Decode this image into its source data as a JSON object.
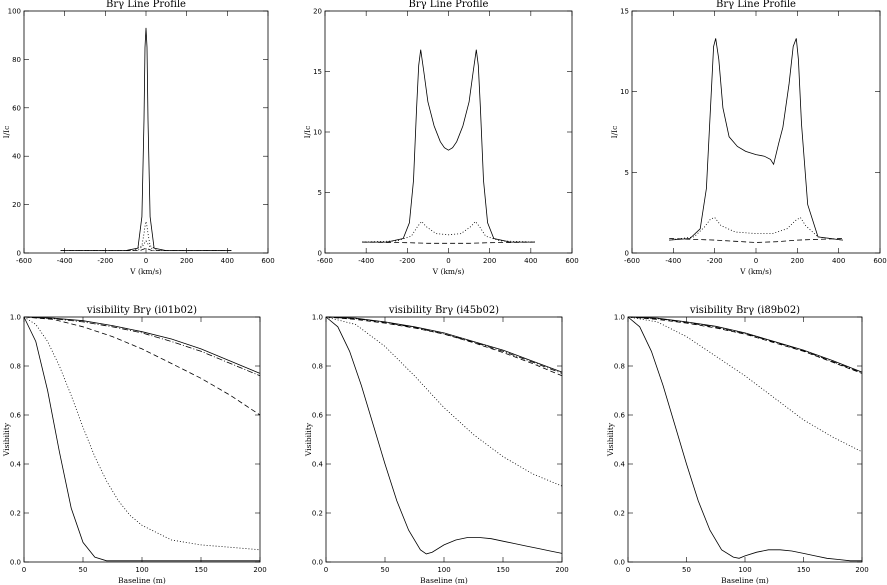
{
  "chart_data": [
    {
      "type": "line",
      "title": "Brγ Line Profile",
      "xlabel": "V (km/s)",
      "ylabel": "I/Ic",
      "xlim": [
        -600,
        600
      ],
      "ylim": [
        0,
        100
      ],
      "xticks": [
        -600,
        -400,
        -200,
        0,
        200,
        400,
        600
      ],
      "yticks": [
        0,
        20,
        40,
        60,
        80,
        100
      ],
      "series": [
        {
          "style": "solid",
          "x": [
            -420,
            -100,
            -40,
            -20,
            -10,
            -5,
            0,
            5,
            10,
            20,
            40,
            100,
            420
          ],
          "y": [
            1,
            1,
            2,
            15,
            55,
            85,
            93,
            85,
            55,
            15,
            2,
            1,
            1
          ]
        },
        {
          "style": "dotted",
          "x": [
            -420,
            -60,
            -20,
            -10,
            -5,
            0,
            5,
            10,
            20,
            60,
            420
          ],
          "y": [
            1,
            1,
            3,
            8,
            11,
            13,
            11,
            8,
            3,
            1,
            1
          ]
        },
        {
          "style": "dotted",
          "x": [
            -420,
            -40,
            -15,
            0,
            15,
            40,
            420
          ],
          "y": [
            1,
            1,
            3,
            5,
            3,
            1,
            1
          ]
        },
        {
          "style": "dashed",
          "x": [
            -420,
            -30,
            0,
            30,
            420
          ],
          "y": [
            1,
            1,
            2,
            1,
            1
          ]
        }
      ]
    },
    {
      "type": "line",
      "title": "Brγ Line Profile",
      "xlabel": "V (km/s)",
      "ylabel": "I/Ic",
      "xlim": [
        -600,
        600
      ],
      "ylim": [
        0,
        20
      ],
      "xticks": [
        -600,
        -400,
        -200,
        0,
        200,
        400,
        600
      ],
      "yticks": [
        0,
        5,
        10,
        15,
        20
      ],
      "series": [
        {
          "style": "solid",
          "x": [
            -420,
            -300,
            -220,
            -190,
            -170,
            -155,
            -145,
            -135,
            -120,
            -100,
            -70,
            -40,
            -20,
            0,
            20,
            40,
            70,
            100,
            120,
            135,
            145,
            155,
            170,
            190,
            220,
            300,
            420
          ],
          "y": [
            0.9,
            0.9,
            1.2,
            2.5,
            6,
            12,
            15.5,
            16.8,
            15,
            12.5,
            10.5,
            9.2,
            8.7,
            8.5,
            8.7,
            9.2,
            10.5,
            12.5,
            15,
            16.8,
            15.5,
            12,
            6,
            2.5,
            1.2,
            0.9,
            0.9
          ]
        },
        {
          "style": "dotted",
          "x": [
            -420,
            -250,
            -180,
            -150,
            -130,
            -110,
            -60,
            0,
            60,
            110,
            130,
            150,
            180,
            250,
            420
          ],
          "y": [
            0.9,
            1.0,
            1.4,
            2.2,
            2.6,
            2.2,
            1.6,
            1.5,
            1.6,
            2.2,
            2.6,
            2.2,
            1.4,
            1.0,
            0.9
          ]
        },
        {
          "style": "dashed",
          "x": [
            -420,
            -200,
            -100,
            0,
            100,
            200,
            420
          ],
          "y": [
            0.9,
            0.85,
            0.8,
            0.8,
            0.8,
            0.85,
            0.9
          ]
        }
      ]
    },
    {
      "type": "line",
      "title": "Brγ Line Profile",
      "xlabel": "V (km/s)",
      "ylabel": "I/Ic",
      "xlim": [
        -600,
        600
      ],
      "ylim": [
        0,
        15
      ],
      "xticks": [
        -600,
        -400,
        -200,
        0,
        200,
        400,
        600
      ],
      "yticks": [
        0,
        5,
        10,
        15
      ],
      "series": [
        {
          "style": "solid",
          "x": [
            -420,
            -320,
            -270,
            -240,
            -220,
            -205,
            -195,
            -180,
            -160,
            -130,
            -90,
            -50,
            0,
            40,
            70,
            85,
            95,
            110,
            130,
            160,
            180,
            195,
            205,
            220,
            250,
            300,
            420
          ],
          "y": [
            0.8,
            0.9,
            1.5,
            4,
            9,
            12.8,
            13.3,
            12,
            9,
            7.2,
            6.6,
            6.3,
            6.1,
            6.0,
            5.8,
            5.5,
            6,
            6.8,
            7.8,
            10.5,
            12.8,
            13.3,
            12,
            8,
            3,
            1,
            0.8
          ]
        },
        {
          "style": "dotted",
          "x": [
            -420,
            -300,
            -250,
            -220,
            -200,
            -170,
            -100,
            0,
            80,
            150,
            190,
            215,
            240,
            300,
            420
          ],
          "y": [
            0.8,
            1.0,
            1.6,
            2.1,
            2.2,
            1.7,
            1.3,
            1.2,
            1.2,
            1.5,
            2.0,
            2.2,
            1.7,
            1.0,
            0.8
          ]
        },
        {
          "style": "dashed",
          "x": [
            -420,
            -200,
            0,
            100,
            200,
            420
          ],
          "y": [
            0.9,
            0.8,
            0.65,
            0.7,
            0.8,
            0.9
          ]
        }
      ]
    },
    {
      "type": "line",
      "title": "visibility Brγ (i01b02)",
      "xlabel": "Baseline (m)",
      "ylabel": "Visibility",
      "xlim": [
        0,
        200
      ],
      "ylim": [
        0,
        1.0
      ],
      "xticks": [
        0,
        50,
        100,
        150,
        200
      ],
      "yticks": [
        0,
        0.2,
        0.4,
        0.6,
        0.8,
        1.0
      ],
      "series": [
        {
          "style": "solid",
          "x": [
            0,
            10,
            20,
            30,
            40,
            50,
            60,
            70,
            80,
            100,
            150,
            200
          ],
          "y": [
            1.0,
            0.9,
            0.7,
            0.45,
            0.22,
            0.08,
            0.02,
            0.005,
            0.005,
            0.005,
            0.005,
            0.005
          ]
        },
        {
          "style": "dotted",
          "x": [
            0,
            10,
            20,
            30,
            40,
            50,
            60,
            70,
            80,
            90,
            100,
            125,
            150,
            175,
            200
          ],
          "y": [
            1.0,
            0.97,
            0.9,
            0.8,
            0.68,
            0.55,
            0.43,
            0.33,
            0.25,
            0.19,
            0.15,
            0.09,
            0.07,
            0.06,
            0.05
          ]
        },
        {
          "style": "dashed",
          "x": [
            0,
            25,
            50,
            75,
            100,
            125,
            150,
            175,
            200
          ],
          "y": [
            1.0,
            0.99,
            0.96,
            0.92,
            0.87,
            0.81,
            0.75,
            0.68,
            0.6
          ]
        },
        {
          "style": "solid",
          "x": [
            0,
            25,
            50,
            75,
            100,
            125,
            150,
            175,
            200
          ],
          "y": [
            1.0,
            0.995,
            0.985,
            0.965,
            0.94,
            0.91,
            0.87,
            0.82,
            0.77
          ]
        },
        {
          "style": "dashdot",
          "x": [
            0,
            25,
            50,
            75,
            100,
            125,
            150,
            175,
            200
          ],
          "y": [
            1.0,
            0.993,
            0.98,
            0.96,
            0.935,
            0.9,
            0.86,
            0.81,
            0.76
          ]
        }
      ]
    },
    {
      "type": "line",
      "title": "visibility Brγ (i45b02)",
      "xlabel": "Baseline (m)",
      "ylabel": "Visibility",
      "xlim": [
        0,
        200
      ],
      "ylim": [
        0,
        1.0
      ],
      "xticks": [
        0,
        50,
        100,
        150,
        200
      ],
      "yticks": [
        0,
        0.2,
        0.4,
        0.6,
        0.8,
        1.0
      ],
      "series": [
        {
          "style": "solid",
          "x": [
            0,
            10,
            20,
            30,
            40,
            50,
            60,
            70,
            80,
            85,
            90,
            100,
            110,
            120,
            130,
            140,
            150,
            160,
            170,
            180,
            190,
            200
          ],
          "y": [
            1.0,
            0.96,
            0.86,
            0.72,
            0.56,
            0.4,
            0.25,
            0.13,
            0.05,
            0.033,
            0.04,
            0.07,
            0.09,
            0.1,
            0.1,
            0.095,
            0.085,
            0.075,
            0.065,
            0.055,
            0.045,
            0.035
          ]
        },
        {
          "style": "dotted",
          "x": [
            0,
            25,
            50,
            75,
            100,
            125,
            150,
            175,
            200
          ],
          "y": [
            1.0,
            0.97,
            0.88,
            0.76,
            0.63,
            0.52,
            0.43,
            0.36,
            0.31
          ]
        },
        {
          "style": "dashed",
          "x": [
            0,
            25,
            50,
            75,
            100,
            125,
            150,
            175,
            200
          ],
          "y": [
            1.0,
            0.99,
            0.975,
            0.955,
            0.93,
            0.895,
            0.855,
            0.81,
            0.76
          ]
        },
        {
          "style": "solid",
          "x": [
            0,
            25,
            50,
            75,
            100,
            125,
            150,
            175,
            200
          ],
          "y": [
            1.0,
            0.995,
            0.98,
            0.96,
            0.935,
            0.9,
            0.865,
            0.82,
            0.775
          ]
        },
        {
          "style": "dashdot",
          "x": [
            0,
            25,
            50,
            75,
            100,
            125,
            150,
            175,
            200
          ],
          "y": [
            1.0,
            0.993,
            0.978,
            0.957,
            0.931,
            0.897,
            0.86,
            0.816,
            0.77
          ]
        }
      ]
    },
    {
      "type": "line",
      "title": "visibility Brγ (i89b02)",
      "xlabel": "Baseline (m)",
      "ylabel": "Visibility",
      "xlim": [
        0,
        200
      ],
      "ylim": [
        0,
        1.0
      ],
      "xticks": [
        0,
        50,
        100,
        150,
        200
      ],
      "yticks": [
        0,
        0.2,
        0.4,
        0.6,
        0.8,
        1.0
      ],
      "series": [
        {
          "style": "solid",
          "x": [
            0,
            10,
            20,
            30,
            40,
            50,
            60,
            70,
            80,
            90,
            95,
            100,
            110,
            120,
            130,
            140,
            150,
            160,
            170,
            180,
            190,
            200
          ],
          "y": [
            1.0,
            0.96,
            0.86,
            0.72,
            0.56,
            0.4,
            0.25,
            0.13,
            0.05,
            0.02,
            0.015,
            0.025,
            0.04,
            0.05,
            0.05,
            0.045,
            0.035,
            0.025,
            0.015,
            0.01,
            0.005,
            0.005
          ]
        },
        {
          "style": "dotted",
          "x": [
            0,
            25,
            50,
            75,
            100,
            125,
            150,
            175,
            200
          ],
          "y": [
            1.0,
            0.98,
            0.92,
            0.84,
            0.76,
            0.67,
            0.58,
            0.51,
            0.45
          ]
        },
        {
          "style": "dashed",
          "x": [
            0,
            25,
            50,
            75,
            100,
            125,
            150,
            175,
            200
          ],
          "y": [
            1.0,
            0.99,
            0.975,
            0.955,
            0.93,
            0.895,
            0.86,
            0.815,
            0.77
          ]
        },
        {
          "style": "solid",
          "x": [
            0,
            25,
            50,
            75,
            100,
            125,
            150,
            175,
            200
          ],
          "y": [
            1.0,
            0.995,
            0.98,
            0.962,
            0.935,
            0.9,
            0.865,
            0.822,
            0.775
          ]
        },
        {
          "style": "dashdot",
          "x": [
            0,
            25,
            50,
            75,
            100,
            125,
            150,
            175,
            200
          ],
          "y": [
            1.0,
            0.993,
            0.978,
            0.958,
            0.932,
            0.898,
            0.862,
            0.818,
            0.772
          ]
        }
      ]
    }
  ]
}
